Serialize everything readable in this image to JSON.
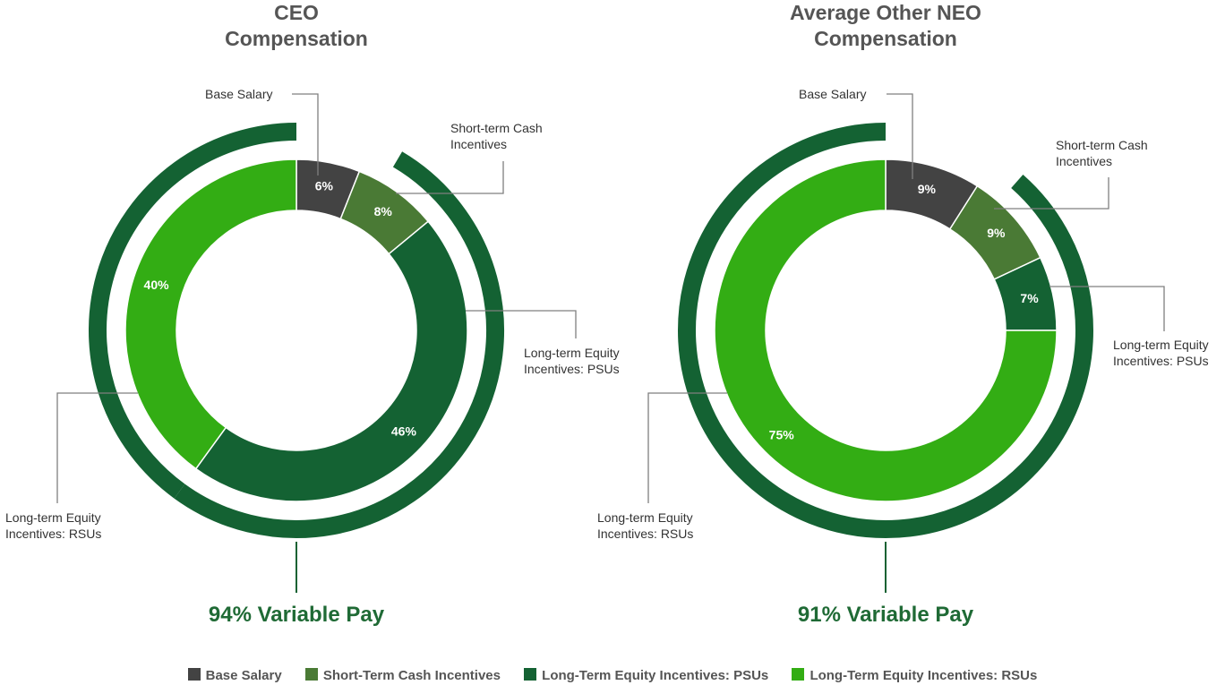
{
  "colors": {
    "base_salary": "#434343",
    "short_term_cash": "#4a7a35",
    "lti_psus": "#146233",
    "lti_rsus": "#33ad14",
    "variable_ring": "#146233",
    "leader": "#7f7f7f"
  },
  "chart_data": [
    {
      "type": "pie",
      "title_lines": [
        "CEO",
        "Compensation"
      ],
      "categories": [
        "Base Salary",
        "Short-term Cash Incentives",
        "Long-term Equity Incentives: PSUs",
        "Long-term Equity Incentives: RSUs"
      ],
      "values": [
        6,
        8,
        46,
        40
      ],
      "value_labels": [
        "6%",
        "8%",
        "46%",
        "40%"
      ],
      "variable_pay_label": "94% Variable Pay",
      "callouts": {
        "base": [
          "Base Salary"
        ],
        "cash": [
          "Short-term Cash",
          "Incentives"
        ],
        "psu": [
          "Long-term Equity",
          "Incentives: PSUs"
        ],
        "rsu": [
          "Long-term Equity",
          "Incentives: RSUs"
        ]
      }
    },
    {
      "type": "pie",
      "title_lines": [
        "Average Other NEO",
        "Compensation"
      ],
      "categories": [
        "Base Salary",
        "Short-term Cash Incentives",
        "Long-term Equity Incentives: PSUs",
        "Long-term Equity Incentives: RSUs"
      ],
      "values": [
        9,
        9,
        7,
        75
      ],
      "value_labels": [
        "9%",
        "9%",
        "7%",
        "75%"
      ],
      "variable_pay_label": "91% Variable Pay",
      "callouts": {
        "base": [
          "Base Salary"
        ],
        "cash": [
          "Short-term Cash",
          "Incentives"
        ],
        "psu": [
          "Long-term Equity",
          "Incentives: PSUs"
        ],
        "rsu": [
          "Long-term Equity",
          "Incentives: RSUs"
        ]
      }
    }
  ],
  "legend": [
    {
      "label": "Base Salary",
      "color": "#434343"
    },
    {
      "label": "Short-Term Cash Incentives",
      "color": "#4a7a35"
    },
    {
      "label": "Long-Term Equity Incentives: PSUs",
      "color": "#146233"
    },
    {
      "label": "Long-Term Equity Incentives: RSUs",
      "color": "#33ad14"
    }
  ]
}
